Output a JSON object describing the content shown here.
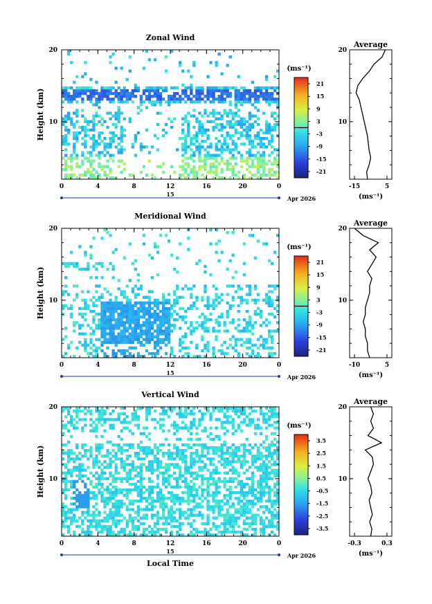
{
  "chart_data": [
    {
      "type": "heatmap",
      "title": "Zonal Wind",
      "ylabel": "Height (km)",
      "xlabel": "",
      "x_ticks": [
        "0",
        "4",
        "8",
        "12",
        "16",
        "20",
        "0"
      ],
      "y_ticks": [
        "20",
        "10"
      ],
      "date_day": "15",
      "date_label": "Apr 2026",
      "colorbar": {
        "unit": "(ms⁻¹)",
        "ticks": [
          "21",
          "15",
          "9",
          "3",
          "-3",
          "-9",
          "-15",
          "-21"
        ],
        "range": [
          -24,
          24
        ]
      },
      "average": {
        "title": "Average",
        "x_ticks": [
          "-15",
          "5"
        ],
        "xlabel": "(ms⁻¹)",
        "y_ticks": [
          "20",
          "10"
        ],
        "profile": [
          [
            -7,
            2
          ],
          [
            -7.5,
            3
          ],
          [
            -6,
            4
          ],
          [
            -5,
            5
          ],
          [
            -6,
            6
          ],
          [
            -6.5,
            7
          ],
          [
            -7,
            8
          ],
          [
            -8,
            9
          ],
          [
            -9,
            10
          ],
          [
            -10,
            11
          ],
          [
            -11,
            12
          ],
          [
            -12,
            13
          ],
          [
            -14,
            14
          ],
          [
            -13,
            15
          ],
          [
            -10,
            16
          ],
          [
            -6,
            17
          ],
          [
            -3,
            18
          ],
          [
            2,
            19
          ],
          [
            4,
            20
          ]
        ]
      },
      "field_hint": {
        "strong_negative_band_km": 14,
        "mean_wind": -4
      }
    },
    {
      "type": "heatmap",
      "title": "Meridional Wind",
      "ylabel": "Height (km)",
      "xlabel": "",
      "x_ticks": [
        "0",
        "4",
        "8",
        "12",
        "16",
        "20",
        "0"
      ],
      "y_ticks": [
        "20",
        "10"
      ],
      "date_day": "15",
      "date_label": "Apr 2026",
      "colorbar": {
        "unit": "(ms⁻¹)",
        "ticks": [
          "21",
          "15",
          "9",
          "3",
          "-3",
          "-9",
          "-15",
          "-21"
        ],
        "range": [
          -24,
          24
        ]
      },
      "average": {
        "title": "Average",
        "x_ticks": [
          "-10",
          "5"
        ],
        "xlabel": "(ms⁻¹)",
        "y_ticks": [
          "20",
          "10"
        ],
        "profile": [
          [
            -3,
            2
          ],
          [
            -4,
            3
          ],
          [
            -4,
            4
          ],
          [
            -5,
            5
          ],
          [
            -5,
            6
          ],
          [
            -6,
            7
          ],
          [
            -5,
            8
          ],
          [
            -5,
            9
          ],
          [
            -4,
            10
          ],
          [
            -3,
            11
          ],
          [
            -3,
            12
          ],
          [
            -2,
            13
          ],
          [
            -4,
            14
          ],
          [
            -2,
            15
          ],
          [
            0,
            16
          ],
          [
            -3,
            17
          ],
          [
            1,
            18
          ],
          [
            -6,
            19
          ],
          [
            -10,
            20
          ]
        ]
      }
    },
    {
      "type": "heatmap",
      "title": "Vertical Wind",
      "ylabel": "Height (km)",
      "xlabel": "Local Time",
      "x_ticks": [
        "0",
        "4",
        "8",
        "12",
        "16",
        "20",
        "0"
      ],
      "y_ticks": [
        "20",
        "10"
      ],
      "date_day": "15",
      "date_label": "Apr 2026",
      "colorbar": {
        "unit": "(ms⁻¹)",
        "ticks": [
          "3.5",
          "2.5",
          "1.5",
          "0.5",
          "-0.5",
          "-1.5",
          "-2.5",
          "-3.5"
        ],
        "range": [
          -4,
          4
        ]
      },
      "average": {
        "title": "Average",
        "x_ticks": [
          "-0.3",
          "0.3"
        ],
        "xlabel": "(ms⁻¹)",
        "y_ticks": [
          "20",
          "10"
        ],
        "profile": [
          [
            0.0,
            2
          ],
          [
            0.02,
            3
          ],
          [
            -0.02,
            4
          ],
          [
            0.03,
            5
          ],
          [
            0.0,
            6
          ],
          [
            -0.03,
            7
          ],
          [
            0.02,
            8
          ],
          [
            0.0,
            9
          ],
          [
            -0.05,
            10
          ],
          [
            0.0,
            11
          ],
          [
            0.05,
            12
          ],
          [
            0.03,
            13
          ],
          [
            -0.1,
            14
          ],
          [
            0.2,
            15
          ],
          [
            -0.05,
            16
          ],
          [
            0.05,
            17
          ],
          [
            0.0,
            18
          ],
          [
            0.05,
            19
          ],
          [
            0.0,
            20
          ]
        ]
      }
    }
  ]
}
